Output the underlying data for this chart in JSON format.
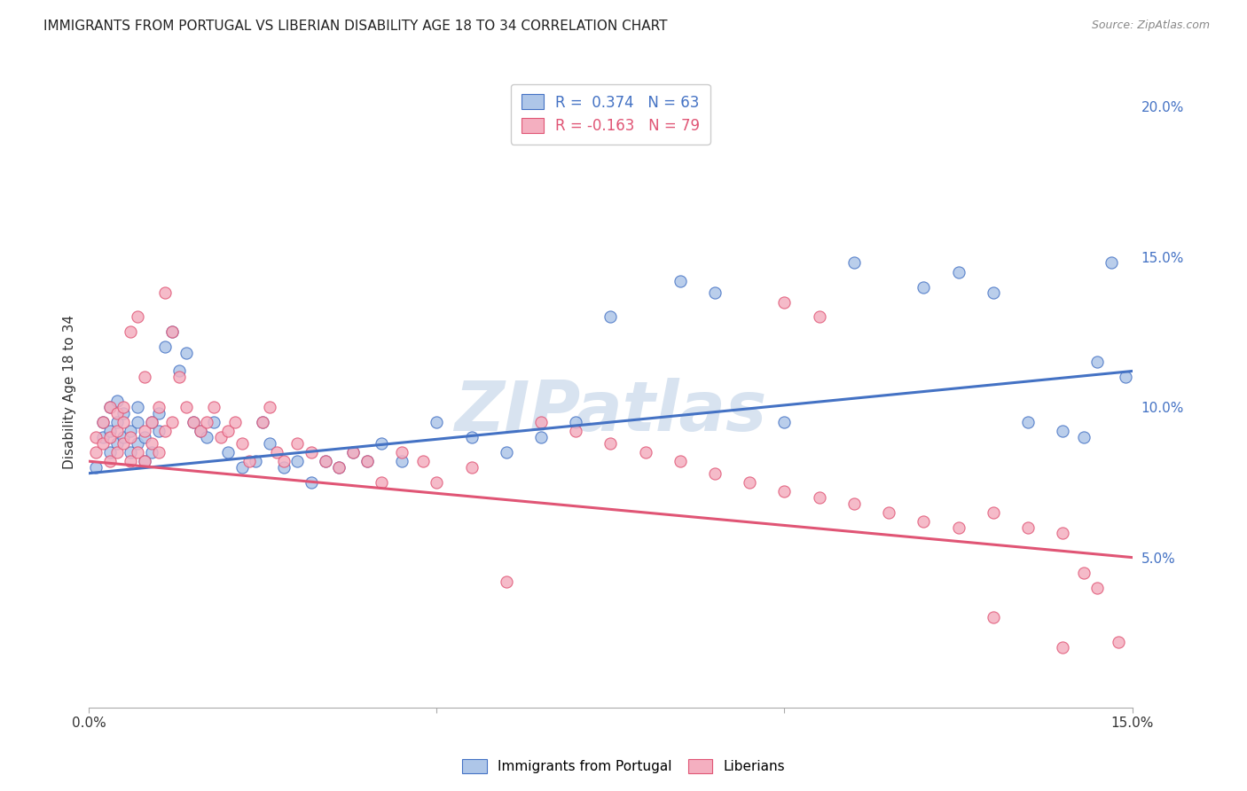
{
  "title": "IMMIGRANTS FROM PORTUGAL VS LIBERIAN DISABILITY AGE 18 TO 34 CORRELATION CHART",
  "source": "Source: ZipAtlas.com",
  "ylabel_label": "Disability Age 18 to 34",
  "xlim": [
    0.0,
    0.15
  ],
  "ylim": [
    0.0,
    0.21
  ],
  "yticks_right": [
    0.05,
    0.1,
    0.15,
    0.2
  ],
  "ytick_right_labels": [
    "5.0%",
    "10.0%",
    "15.0%",
    "20.0%"
  ],
  "legend_r1": "R =  0.374   N = 63",
  "legend_r2": "R = -0.163   N = 79",
  "scatter_blue_color": "#aec6e8",
  "scatter_pink_color": "#f4afc0",
  "line_blue_color": "#4472c4",
  "line_pink_color": "#e05575",
  "watermark": "ZIPatlas",
  "watermark_color": "#c8d8ea",
  "background_color": "#ffffff",
  "grid_color": "#e0e0e0",
  "blue_scatter_x": [
    0.001,
    0.002,
    0.002,
    0.003,
    0.003,
    0.003,
    0.004,
    0.004,
    0.004,
    0.005,
    0.005,
    0.006,
    0.006,
    0.007,
    0.007,
    0.007,
    0.008,
    0.008,
    0.009,
    0.009,
    0.01,
    0.01,
    0.011,
    0.012,
    0.013,
    0.014,
    0.015,
    0.016,
    0.017,
    0.018,
    0.02,
    0.022,
    0.024,
    0.025,
    0.026,
    0.028,
    0.03,
    0.032,
    0.034,
    0.036,
    0.038,
    0.04,
    0.042,
    0.045,
    0.05,
    0.055,
    0.06,
    0.065,
    0.07,
    0.075,
    0.085,
    0.09,
    0.1,
    0.11,
    0.12,
    0.125,
    0.13,
    0.135,
    0.14,
    0.143,
    0.145,
    0.147,
    0.149
  ],
  "blue_scatter_y": [
    0.08,
    0.09,
    0.095,
    0.085,
    0.092,
    0.1,
    0.088,
    0.095,
    0.102,
    0.09,
    0.098,
    0.085,
    0.092,
    0.088,
    0.095,
    0.1,
    0.082,
    0.09,
    0.085,
    0.095,
    0.092,
    0.098,
    0.12,
    0.125,
    0.112,
    0.118,
    0.095,
    0.092,
    0.09,
    0.095,
    0.085,
    0.08,
    0.082,
    0.095,
    0.088,
    0.08,
    0.082,
    0.075,
    0.082,
    0.08,
    0.085,
    0.082,
    0.088,
    0.082,
    0.095,
    0.09,
    0.085,
    0.09,
    0.095,
    0.13,
    0.142,
    0.138,
    0.095,
    0.148,
    0.14,
    0.145,
    0.138,
    0.095,
    0.092,
    0.09,
    0.115,
    0.148,
    0.11
  ],
  "pink_scatter_x": [
    0.001,
    0.001,
    0.002,
    0.002,
    0.003,
    0.003,
    0.003,
    0.004,
    0.004,
    0.004,
    0.005,
    0.005,
    0.005,
    0.006,
    0.006,
    0.006,
    0.007,
    0.007,
    0.008,
    0.008,
    0.008,
    0.009,
    0.009,
    0.01,
    0.01,
    0.011,
    0.011,
    0.012,
    0.012,
    0.013,
    0.014,
    0.015,
    0.016,
    0.017,
    0.018,
    0.019,
    0.02,
    0.021,
    0.022,
    0.023,
    0.025,
    0.026,
    0.027,
    0.028,
    0.03,
    0.032,
    0.034,
    0.036,
    0.038,
    0.04,
    0.042,
    0.045,
    0.048,
    0.05,
    0.055,
    0.06,
    0.065,
    0.07,
    0.075,
    0.08,
    0.085,
    0.09,
    0.095,
    0.1,
    0.105,
    0.11,
    0.115,
    0.12,
    0.125,
    0.13,
    0.1,
    0.105,
    0.13,
    0.135,
    0.14,
    0.14,
    0.143,
    0.145,
    0.148
  ],
  "pink_scatter_y": [
    0.09,
    0.085,
    0.095,
    0.088,
    0.082,
    0.09,
    0.1,
    0.085,
    0.092,
    0.098,
    0.088,
    0.095,
    0.1,
    0.082,
    0.09,
    0.125,
    0.085,
    0.13,
    0.082,
    0.092,
    0.11,
    0.088,
    0.095,
    0.1,
    0.085,
    0.138,
    0.092,
    0.125,
    0.095,
    0.11,
    0.1,
    0.095,
    0.092,
    0.095,
    0.1,
    0.09,
    0.092,
    0.095,
    0.088,
    0.082,
    0.095,
    0.1,
    0.085,
    0.082,
    0.088,
    0.085,
    0.082,
    0.08,
    0.085,
    0.082,
    0.075,
    0.085,
    0.082,
    0.075,
    0.08,
    0.042,
    0.095,
    0.092,
    0.088,
    0.085,
    0.082,
    0.078,
    0.075,
    0.072,
    0.07,
    0.068,
    0.065,
    0.062,
    0.06,
    0.03,
    0.135,
    0.13,
    0.065,
    0.06,
    0.058,
    0.02,
    0.045,
    0.04,
    0.022
  ]
}
